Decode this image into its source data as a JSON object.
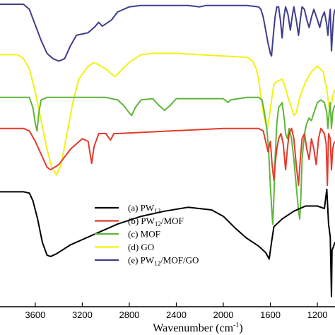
{
  "chart_data": {
    "type": "line",
    "title": "",
    "xlabel": "Wavenumber (cm",
    "xlabel_sup": "-1",
    "xlabel_close": ")",
    "ylabel": "",
    "xlim": [
      3900,
      1050
    ],
    "x_reversed": true,
    "x_ticks": [
      3600,
      3200,
      2800,
      2400,
      2000,
      1600,
      1200
    ],
    "x_tick_labels": [
      "3600",
      "3200",
      "2800",
      "2400",
      "2000",
      "1600",
      "1200"
    ],
    "ylim": [
      0,
      100
    ],
    "y_ticks_visible": false,
    "grid": false,
    "legend_position": "bottom-center",
    "series": [
      {
        "name": "(a) PW",
        "name_sub": "12",
        "name_rest": "",
        "color": "#000000",
        "points": [
          [
            3900,
            27.5
          ],
          [
            3700,
            27.5
          ],
          [
            3650,
            27
          ],
          [
            3620,
            24
          ],
          [
            3580,
            17
          ],
          [
            3540,
            8
          ],
          [
            3500,
            3
          ],
          [
            3470,
            2.5
          ],
          [
            3420,
            3.5
          ],
          [
            3300,
            7
          ],
          [
            3100,
            11
          ],
          [
            2900,
            15
          ],
          [
            2700,
            18
          ],
          [
            2500,
            20
          ],
          [
            2300,
            21.5
          ],
          [
            2100,
            20.5
          ],
          [
            2000,
            18
          ],
          [
            1900,
            13.5
          ],
          [
            1800,
            9.5
          ],
          [
            1700,
            6.5
          ],
          [
            1640,
            4
          ],
          [
            1610,
            1.5
          ],
          [
            1590,
            8
          ],
          [
            1570,
            14
          ],
          [
            1500,
            17
          ],
          [
            1400,
            20
          ],
          [
            1300,
            22
          ],
          [
            1200,
            22
          ],
          [
            1140,
            21
          ],
          [
            1120,
            28.5
          ],
          [
            1105,
            15
          ],
          [
            1090,
            10
          ],
          [
            1080,
            -13
          ],
          [
            1075,
            5
          ],
          [
            1065,
            6
          ],
          [
            1050,
            8
          ]
        ]
      },
      {
        "name": "(b) PW",
        "name_sub": "12",
        "name_rest": "/MOF",
        "color": "#e53a2a",
        "points": [
          [
            3900,
            52
          ],
          [
            3700,
            52
          ],
          [
            3650,
            51
          ],
          [
            3600,
            47
          ],
          [
            3550,
            42
          ],
          [
            3500,
            37
          ],
          [
            3470,
            36
          ],
          [
            3400,
            38
          ],
          [
            3300,
            44
          ],
          [
            3200,
            48
          ],
          [
            3150,
            47
          ],
          [
            3120,
            38.5
          ],
          [
            3100,
            45
          ],
          [
            3060,
            50
          ],
          [
            3000,
            50
          ],
          [
            2960,
            47.5
          ],
          [
            2930,
            50
          ],
          [
            2900,
            50
          ],
          [
            2000,
            52
          ],
          [
            1700,
            52
          ],
          [
            1660,
            51
          ],
          [
            1640,
            47
          ],
          [
            1620,
            43
          ],
          [
            1600,
            47
          ],
          [
            1585,
            38
          ],
          [
            1570,
            32
          ],
          [
            1555,
            40
          ],
          [
            1545,
            44
          ],
          [
            1530,
            48
          ],
          [
            1510,
            50
          ],
          [
            1490,
            46
          ],
          [
            1470,
            36
          ],
          [
            1455,
            44
          ],
          [
            1440,
            50
          ],
          [
            1420,
            52
          ],
          [
            1400,
            48
          ],
          [
            1380,
            38
          ],
          [
            1360,
            30
          ],
          [
            1345,
            40
          ],
          [
            1330,
            48
          ],
          [
            1310,
            50
          ],
          [
            1290,
            44
          ],
          [
            1270,
            40
          ],
          [
            1250,
            48
          ],
          [
            1230,
            44
          ],
          [
            1210,
            38
          ],
          [
            1190,
            48
          ],
          [
            1170,
            52
          ],
          [
            1140,
            50
          ],
          [
            1125,
            46
          ],
          [
            1115,
            30
          ],
          [
            1105,
            50
          ],
          [
            1090,
            48
          ],
          [
            1080,
            36
          ],
          [
            1070,
            44
          ],
          [
            1060,
            46
          ],
          [
            1050,
            47
          ]
        ]
      },
      {
        "name": "(c) MOF",
        "name_sub": "",
        "name_rest": "",
        "color": "#5db63a",
        "points": [
          [
            3900,
            64
          ],
          [
            3700,
            64
          ],
          [
            3650,
            64
          ],
          [
            3620,
            60
          ],
          [
            3600,
            54
          ],
          [
            3585,
            51
          ],
          [
            3570,
            58
          ],
          [
            3550,
            63
          ],
          [
            3500,
            64
          ],
          [
            3000,
            64
          ],
          [
            2900,
            63
          ],
          [
            2850,
            61
          ],
          [
            2800,
            58
          ],
          [
            2780,
            57
          ],
          [
            2750,
            60
          ],
          [
            2700,
            63
          ],
          [
            2600,
            63.5
          ],
          [
            2550,
            61
          ],
          [
            2500,
            59
          ],
          [
            2450,
            61
          ],
          [
            2400,
            63.5
          ],
          [
            2000,
            63.5
          ],
          [
            1960,
            62
          ],
          [
            1940,
            63
          ],
          [
            1800,
            64
          ],
          [
            1700,
            64
          ],
          [
            1670,
            63
          ],
          [
            1650,
            58
          ],
          [
            1630,
            52
          ],
          [
            1615,
            44
          ],
          [
            1600,
            30
          ],
          [
            1590,
            22
          ],
          [
            1580,
            15
          ],
          [
            1570,
            25
          ],
          [
            1560,
            40
          ],
          [
            1545,
            54
          ],
          [
            1530,
            60
          ],
          [
            1500,
            62
          ],
          [
            1480,
            55
          ],
          [
            1470,
            50
          ],
          [
            1455,
            48
          ],
          [
            1440,
            52
          ],
          [
            1420,
            48
          ],
          [
            1400,
            40
          ],
          [
            1380,
            30
          ],
          [
            1360,
            20
          ],
          [
            1350,
            17
          ],
          [
            1340,
            26
          ],
          [
            1330,
            40
          ],
          [
            1310,
            50
          ],
          [
            1290,
            54
          ],
          [
            1270,
            56
          ],
          [
            1250,
            55
          ],
          [
            1230,
            58
          ],
          [
            1200,
            62
          ],
          [
            1170,
            63
          ],
          [
            1140,
            62
          ],
          [
            1120,
            58
          ],
          [
            1110,
            52
          ],
          [
            1100,
            58
          ],
          [
            1090,
            62
          ],
          [
            1080,
            52
          ],
          [
            1070,
            58
          ],
          [
            1060,
            60
          ],
          [
            1050,
            61
          ]
        ]
      },
      {
        "name": "(d) GO",
        "name_sub": "",
        "name_rest": "",
        "color": "#f2f20f",
        "points": [
          [
            3900,
            80.5
          ],
          [
            3750,
            80.5
          ],
          [
            3700,
            79
          ],
          [
            3650,
            75
          ],
          [
            3600,
            66
          ],
          [
            3550,
            55
          ],
          [
            3500,
            44
          ],
          [
            3460,
            37
          ],
          [
            3420,
            34
          ],
          [
            3380,
            38
          ],
          [
            3330,
            50
          ],
          [
            3280,
            62
          ],
          [
            3230,
            71
          ],
          [
            3150,
            76
          ],
          [
            3100,
            77.5
          ],
          [
            3000,
            75
          ],
          [
            2950,
            73
          ],
          [
            2920,
            72
          ],
          [
            2880,
            74
          ],
          [
            2800,
            77.5
          ],
          [
            2700,
            80.5
          ],
          [
            2600,
            81
          ],
          [
            2400,
            81
          ],
          [
            2200,
            80.5
          ],
          [
            2000,
            80
          ],
          [
            1800,
            79.5
          ],
          [
            1750,
            78
          ],
          [
            1720,
            75
          ],
          [
            1700,
            71
          ],
          [
            1680,
            64
          ],
          [
            1660,
            58
          ],
          [
            1640,
            54
          ],
          [
            1625,
            52
          ],
          [
            1610,
            56
          ],
          [
            1590,
            63
          ],
          [
            1570,
            69
          ],
          [
            1550,
            70
          ],
          [
            1500,
            71
          ],
          [
            1480,
            69
          ],
          [
            1450,
            64
          ],
          [
            1420,
            60
          ],
          [
            1400,
            57
          ],
          [
            1380,
            58
          ],
          [
            1350,
            64
          ],
          [
            1300,
            70
          ],
          [
            1250,
            74
          ],
          [
            1200,
            76
          ],
          [
            1150,
            74
          ],
          [
            1120,
            67
          ],
          [
            1100,
            60
          ],
          [
            1080,
            62
          ],
          [
            1060,
            66
          ],
          [
            1050,
            67
          ]
        ]
      },
      {
        "name": "(e) PW",
        "name_sub": "12",
        "name_rest": "/MOF/GO",
        "color": "#3d3e8c",
        "points": [
          [
            3900,
            100
          ],
          [
            3700,
            100
          ],
          [
            3650,
            98
          ],
          [
            3600,
            92
          ],
          [
            3550,
            86
          ],
          [
            3500,
            81
          ],
          [
            3450,
            79
          ],
          [
            3400,
            78
          ],
          [
            3350,
            79
          ],
          [
            3300,
            84
          ],
          [
            3250,
            88
          ],
          [
            3200,
            88.5
          ],
          [
            3150,
            89
          ],
          [
            3100,
            91
          ],
          [
            3060,
            93
          ],
          [
            3030,
            91.5
          ],
          [
            2980,
            93
          ],
          [
            2950,
            94
          ],
          [
            2900,
            97
          ],
          [
            2800,
            99
          ],
          [
            2700,
            99.5
          ],
          [
            2500,
            99.5
          ],
          [
            2300,
            99.5
          ],
          [
            2200,
            99
          ],
          [
            2150,
            99.5
          ],
          [
            2000,
            99.5
          ],
          [
            1800,
            99.5
          ],
          [
            1700,
            99
          ],
          [
            1680,
            98
          ],
          [
            1660,
            95
          ],
          [
            1640,
            90
          ],
          [
            1620,
            85
          ],
          [
            1600,
            81
          ],
          [
            1590,
            80
          ],
          [
            1575,
            88
          ],
          [
            1560,
            95
          ],
          [
            1545,
            99
          ],
          [
            1530,
            99
          ],
          [
            1515,
            94
          ],
          [
            1500,
            87
          ],
          [
            1485,
            95
          ],
          [
            1470,
            99
          ],
          [
            1450,
            96
          ],
          [
            1430,
            90
          ],
          [
            1415,
            95
          ],
          [
            1400,
            99
          ],
          [
            1380,
            94
          ],
          [
            1360,
            88
          ],
          [
            1345,
            94
          ],
          [
            1330,
            99
          ],
          [
            1310,
            98
          ],
          [
            1290,
            94
          ],
          [
            1270,
            91
          ],
          [
            1250,
            95
          ],
          [
            1230,
            98
          ],
          [
            1200,
            94
          ],
          [
            1180,
            91
          ],
          [
            1160,
            95
          ],
          [
            1140,
            97
          ],
          [
            1120,
            92
          ],
          [
            1110,
            88
          ],
          [
            1100,
            94
          ],
          [
            1090,
            98
          ],
          [
            1080,
            82
          ],
          [
            1070,
            90
          ],
          [
            1060,
            96
          ],
          [
            1050,
            98
          ]
        ]
      }
    ]
  }
}
